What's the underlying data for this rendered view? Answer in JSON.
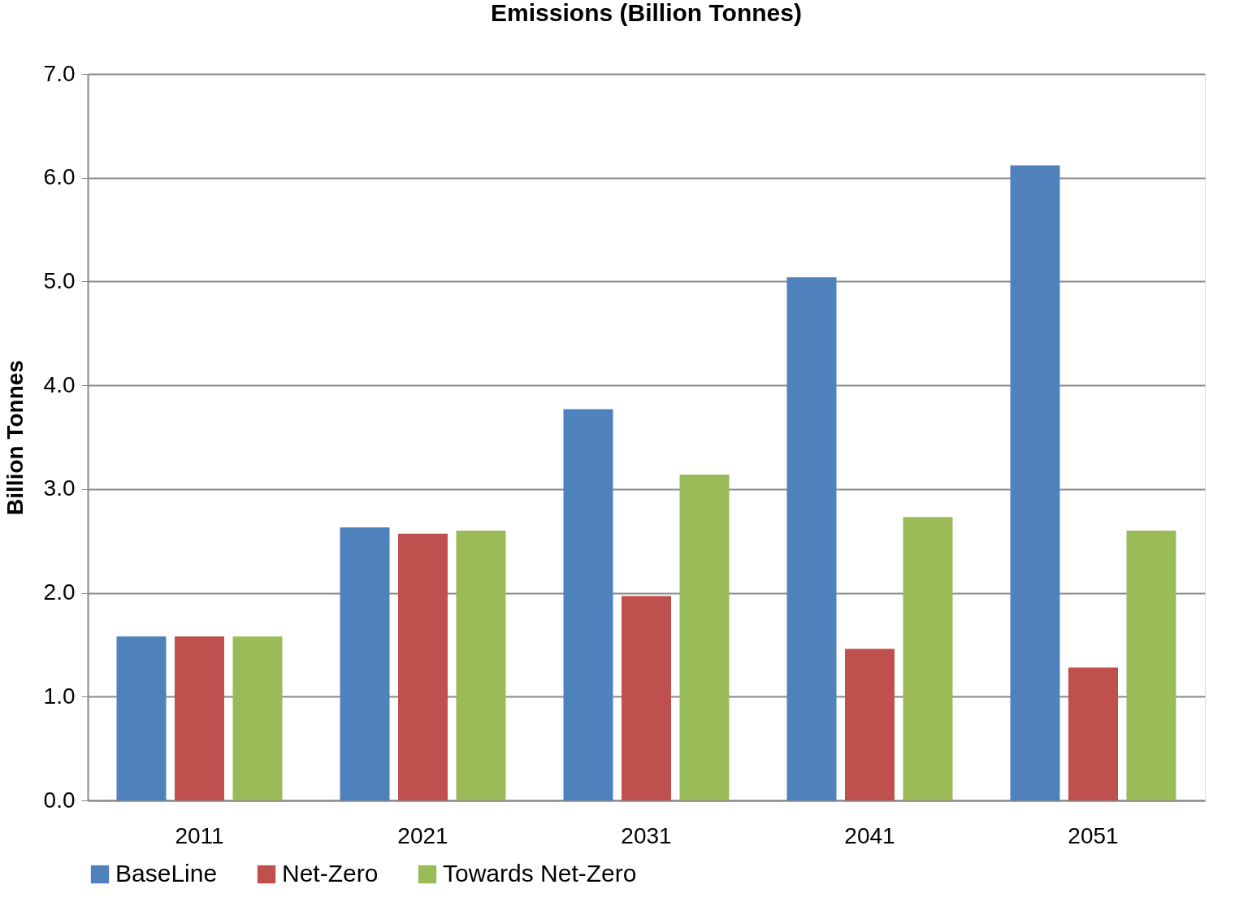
{
  "chart_data": {
    "type": "bar",
    "title": "Emissions (Billion Tonnes)",
    "ylabel": "Billion Tonnes",
    "categories": [
      "2011",
      "2021",
      "2031",
      "2041",
      "2051"
    ],
    "series": [
      {
        "name": "BaseLine",
        "color": "#4f81bd",
        "values": [
          1.58,
          2.63,
          3.77,
          5.04,
          6.12
        ]
      },
      {
        "name": "Net-Zero",
        "color": "#c0504d",
        "values": [
          1.58,
          2.57,
          1.97,
          1.46,
          1.28
        ]
      },
      {
        "name": "Towards Net-Zero",
        "color": "#9bbb59",
        "values": [
          1.58,
          2.6,
          3.14,
          2.73,
          2.6
        ]
      }
    ],
    "ylim": [
      0,
      7
    ],
    "yticks": [
      {
        "value": 0,
        "label": "0.0"
      },
      {
        "value": 1,
        "label": "1.0"
      },
      {
        "value": 2,
        "label": "2.0"
      },
      {
        "value": 3,
        "label": "3.0"
      },
      {
        "value": 4,
        "label": "4.0"
      },
      {
        "value": 5,
        "label": "5.0"
      },
      {
        "value": 6,
        "label": "6.0"
      },
      {
        "value": 7,
        "label": "7.0"
      }
    ],
    "grid": "y",
    "legend": "bottom"
  }
}
